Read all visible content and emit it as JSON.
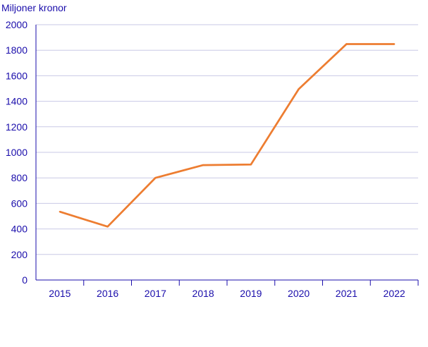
{
  "chart_data": {
    "type": "line",
    "title": "",
    "ylabel": "Miljoner kronor",
    "xlabel": "",
    "categories": [
      "2015",
      "2016",
      "2017",
      "2018",
      "2019",
      "2020",
      "2021",
      "2022"
    ],
    "series": [
      {
        "values": [
          535,
          418,
          800,
          900,
          905,
          1495,
          1848,
          1848
        ],
        "color": "#ed7d31"
      }
    ],
    "ylim": [
      0,
      2000
    ],
    "yticks": [
      0,
      200,
      400,
      600,
      800,
      1000,
      1200,
      1400,
      1600,
      1800,
      2000
    ],
    "grid": true,
    "legend": "none",
    "colors": {
      "text": "#1a0dab",
      "grid": "#c9c9e6",
      "axis": "#1a0dab"
    }
  }
}
